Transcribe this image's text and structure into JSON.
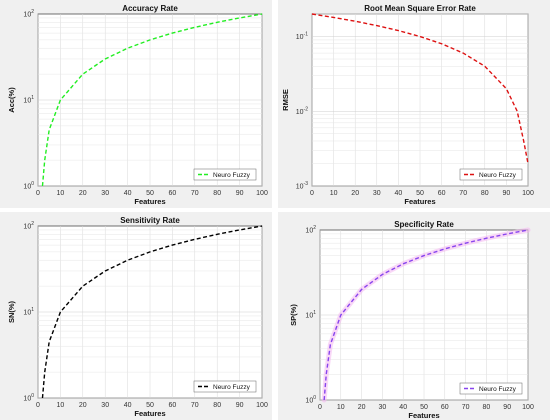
{
  "chart_data": [
    {
      "type": "line",
      "title": "Accuracy Rate",
      "xlabel": "Features",
      "ylabel": "Acc(%)",
      "xlim": [
        0,
        100
      ],
      "ylim": [
        1,
        100
      ],
      "yscale": "log",
      "xticks": [
        "0",
        "10",
        "20",
        "30",
        "40",
        "50",
        "60",
        "70",
        "80",
        "90",
        "100"
      ],
      "yticks": [
        {
          "base": "10",
          "exp": "0",
          "value": 1
        },
        {
          "base": "10",
          "exp": "1",
          "value": 10
        },
        {
          "base": "10",
          "exp": "2",
          "value": 100
        }
      ],
      "grid": true,
      "legend": "bottom-right",
      "series": [
        {
          "name": "Neuro Fuzzy",
          "color": "#22ee22",
          "style": "dashed",
          "x": [
            2,
            3,
            5,
            10,
            20,
            30,
            40,
            50,
            60,
            70,
            80,
            90,
            100
          ],
          "y": [
            1,
            2,
            4.5,
            10,
            20,
            30,
            40,
            50,
            60,
            70,
            80,
            90,
            100
          ]
        }
      ]
    },
    {
      "type": "line",
      "title": "Root Mean Square Error Rate",
      "xlabel": "Features",
      "ylabel": "RMSE",
      "xlim": [
        0,
        100
      ],
      "ylim": [
        0.001,
        0.2
      ],
      "yscale": "log",
      "xticks": [
        "0",
        "10",
        "20",
        "30",
        "40",
        "50",
        "60",
        "70",
        "80",
        "90",
        "100"
      ],
      "yticks": [
        {
          "base": "10",
          "exp": "-3",
          "value": 0.001
        },
        {
          "base": "10",
          "exp": "-2",
          "value": 0.01
        },
        {
          "base": "10",
          "exp": "-1",
          "value": 0.1
        }
      ],
      "grid": true,
      "legend": "bottom-right",
      "series": [
        {
          "name": "Neuro Fuzzy",
          "color": "#dd1111",
          "style": "dashed",
          "x": [
            0,
            10,
            20,
            30,
            40,
            50,
            60,
            70,
            80,
            90,
            95,
            98,
            100
          ],
          "y": [
            0.2,
            0.18,
            0.16,
            0.14,
            0.12,
            0.1,
            0.08,
            0.06,
            0.04,
            0.02,
            0.01,
            0.004,
            0.002
          ]
        }
      ]
    },
    {
      "type": "line",
      "title": "Sensitivity Rate",
      "xlabel": "Features",
      "ylabel": "SN(%)",
      "xlim": [
        0,
        100
      ],
      "ylim": [
        1,
        100
      ],
      "yscale": "log",
      "xticks": [
        "0",
        "10",
        "20",
        "30",
        "40",
        "50",
        "60",
        "70",
        "80",
        "90",
        "100"
      ],
      "yticks": [
        {
          "base": "10",
          "exp": "0",
          "value": 1
        },
        {
          "base": "10",
          "exp": "1",
          "value": 10
        },
        {
          "base": "10",
          "exp": "2",
          "value": 100
        }
      ],
      "grid": true,
      "legend": "bottom-right",
      "series": [
        {
          "name": "Neuro Fuzzy",
          "color": "#000000",
          "style": "dashed",
          "x": [
            2,
            3,
            5,
            10,
            20,
            30,
            40,
            50,
            60,
            70,
            80,
            90,
            100
          ],
          "y": [
            1,
            2,
            4.5,
            10,
            20,
            30,
            40,
            50,
            60,
            70,
            80,
            90,
            100
          ]
        }
      ]
    },
    {
      "type": "line",
      "title": "Specificity Rate",
      "xlabel": "Features",
      "ylabel": "SP(%)",
      "xlim": [
        0,
        100
      ],
      "ylim": [
        1,
        100
      ],
      "yscale": "log",
      "xticks": [
        "0",
        "10",
        "20",
        "30",
        "40",
        "50",
        "60",
        "70",
        "80",
        "90",
        "100"
      ],
      "yticks": [
        {
          "base": "10",
          "exp": "0",
          "value": 1
        },
        {
          "base": "10",
          "exp": "1",
          "value": 10
        },
        {
          "base": "10",
          "exp": "2",
          "value": 100
        }
      ],
      "grid": true,
      "legend": "bottom-right",
      "series": [
        {
          "name": "Neuro Fuzzy",
          "color": "#8844ee",
          "style": "dashed",
          "band_color": "#f4b8f0",
          "x": [
            2,
            3,
            5,
            10,
            20,
            30,
            40,
            50,
            60,
            70,
            80,
            90,
            100
          ],
          "y": [
            1,
            2,
            4.5,
            10,
            20,
            30,
            40,
            50,
            60,
            70,
            80,
            90,
            100
          ]
        }
      ]
    }
  ]
}
